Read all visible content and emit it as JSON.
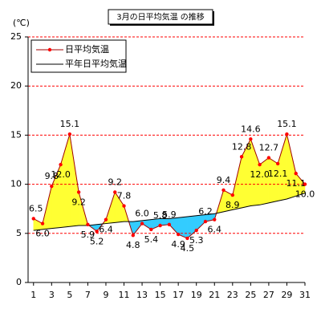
{
  "chart_data": {
    "type": "line",
    "title": "3月の日平均気温 の推移",
    "y_label": "(℃)",
    "x": [
      1,
      2,
      3,
      4,
      5,
      6,
      7,
      8,
      9,
      10,
      11,
      12,
      13,
      14,
      15,
      16,
      17,
      18,
      19,
      20,
      21,
      22,
      23,
      24,
      25,
      26,
      27,
      28,
      29,
      30,
      31
    ],
    "xlim": [
      0.4,
      31
    ],
    "xticks": [
      1,
      3,
      5,
      7,
      9,
      11,
      13,
      15,
      17,
      19,
      21,
      23,
      25,
      27,
      29,
      31
    ],
    "ylim": [
      0,
      25
    ],
    "yticks": [
      0,
      5,
      10,
      15,
      20,
      25
    ],
    "grid": true,
    "legend": "upper left",
    "series": [
      {
        "name": "日平均気温",
        "color": "#a00000",
        "marker_color": "#ff0000",
        "values": [
          6.5,
          6.0,
          9.8,
          12.0,
          15.1,
          9.2,
          5.9,
          5.2,
          6.4,
          9.2,
          7.8,
          4.8,
          6.0,
          5.4,
          5.8,
          5.9,
          4.9,
          4.5,
          5.3,
          6.2,
          6.4,
          9.4,
          8.9,
          12.8,
          14.6,
          12.0,
          12.7,
          12.1,
          15.1,
          11.1,
          10.0
        ],
        "value_labels": [
          "6.5",
          "6.0",
          "9.8",
          "12.0",
          "15.1",
          "9.2",
          "5.9",
          "5.2",
          "6.4",
          "9.2",
          "7.8",
          "4.8",
          "6.0",
          "5.4",
          "5.8",
          "5.9",
          "4.9",
          "4.5",
          "5.3",
          "6.2",
          "6.4",
          "9.4",
          "8.9",
          "12.8",
          "14.6",
          "12.0",
          "12.7",
          "12.1",
          "15.1",
          "11.1",
          "10.0"
        ]
      },
      {
        "name": "平年日平均気温",
        "color": "#000000",
        "values": [
          5.3,
          5.4,
          5.5,
          5.6,
          5.7,
          5.8,
          5.8,
          5.9,
          6.0,
          6.1,
          6.2,
          6.2,
          6.3,
          6.4,
          6.5,
          6.5,
          6.6,
          6.7,
          6.8,
          6.9,
          7.0,
          7.2,
          7.4,
          7.6,
          7.8,
          7.9,
          8.1,
          8.3,
          8.5,
          8.8,
          9.1
        ]
      }
    ]
  }
}
